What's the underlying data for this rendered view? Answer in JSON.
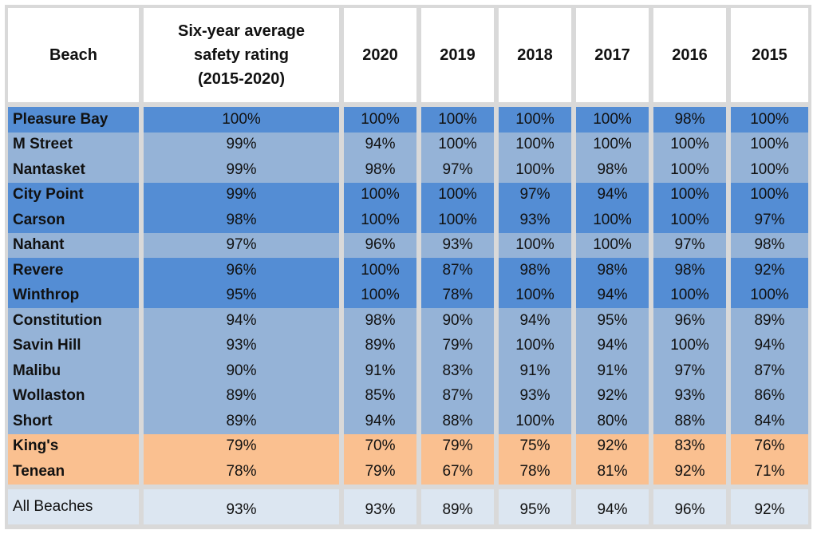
{
  "header": {
    "beach": "Beach",
    "avg_line1": "Six-year average",
    "avg_line2": "safety rating",
    "avg_line3": "(2015-2020)",
    "years": [
      "2020",
      "2019",
      "2018",
      "2017",
      "2016",
      "2015"
    ]
  },
  "rows": [
    {
      "name": "Pleasure Bay",
      "avg": "100%",
      "v": [
        "100%",
        "100%",
        "100%",
        "100%",
        "98%",
        "100%"
      ],
      "band": "dark"
    },
    {
      "name": "M Street",
      "avg": "99%",
      "v": [
        "94%",
        "100%",
        "100%",
        "100%",
        "100%",
        "100%"
      ],
      "band": "light"
    },
    {
      "name": "Nantasket",
      "avg": "99%",
      "v": [
        "98%",
        "97%",
        "100%",
        "98%",
        "100%",
        "100%"
      ],
      "band": "light"
    },
    {
      "name": "City Point",
      "avg": "99%",
      "v": [
        "100%",
        "100%",
        "97%",
        "94%",
        "100%",
        "100%"
      ],
      "band": "dark"
    },
    {
      "name": "Carson",
      "avg": "98%",
      "v": [
        "100%",
        "100%",
        "93%",
        "100%",
        "100%",
        "97%"
      ],
      "band": "dark"
    },
    {
      "name": "Nahant",
      "avg": "97%",
      "v": [
        "96%",
        "93%",
        "100%",
        "100%",
        "97%",
        "98%"
      ],
      "band": "light"
    },
    {
      "name": "Revere",
      "avg": "96%",
      "v": [
        "100%",
        "87%",
        "98%",
        "98%",
        "98%",
        "92%"
      ],
      "band": "dark"
    },
    {
      "name": "Winthrop",
      "avg": "95%",
      "v": [
        "100%",
        "78%",
        "100%",
        "94%",
        "100%",
        "100%"
      ],
      "band": "dark"
    },
    {
      "name": "Constitution",
      "avg": "94%",
      "v": [
        "98%",
        "90%",
        "94%",
        "95%",
        "96%",
        "89%"
      ],
      "band": "light"
    },
    {
      "name": "Savin Hill",
      "avg": "93%",
      "v": [
        "89%",
        "79%",
        "100%",
        "94%",
        "100%",
        "94%"
      ],
      "band": "light"
    },
    {
      "name": "Malibu",
      "avg": "90%",
      "v": [
        "91%",
        "83%",
        "91%",
        "91%",
        "97%",
        "87%"
      ],
      "band": "light"
    },
    {
      "name": "Wollaston",
      "avg": "89%",
      "v": [
        "85%",
        "87%",
        "93%",
        "92%",
        "93%",
        "86%"
      ],
      "band": "light"
    },
    {
      "name": "Short",
      "avg": "89%",
      "v": [
        "94%",
        "88%",
        "100%",
        "80%",
        "88%",
        "84%"
      ],
      "band": "light"
    },
    {
      "name": "King's",
      "avg": "79%",
      "v": [
        "70%",
        "79%",
        "75%",
        "92%",
        "83%",
        "76%"
      ],
      "band": "orange"
    },
    {
      "name": "Tenean",
      "avg": "78%",
      "v": [
        "79%",
        "67%",
        "78%",
        "81%",
        "92%",
        "71%"
      ],
      "band": "orange"
    }
  ],
  "total": {
    "name": "All Beaches",
    "avg": "93%",
    "v": [
      "93%",
      "89%",
      "95%",
      "94%",
      "96%",
      "92%"
    ]
  },
  "colors": {
    "dark": "#548dd4",
    "light": "#95b3d7",
    "orange": "#fac090",
    "total": "#dce6f1",
    "grid": "#d9d9d9"
  }
}
